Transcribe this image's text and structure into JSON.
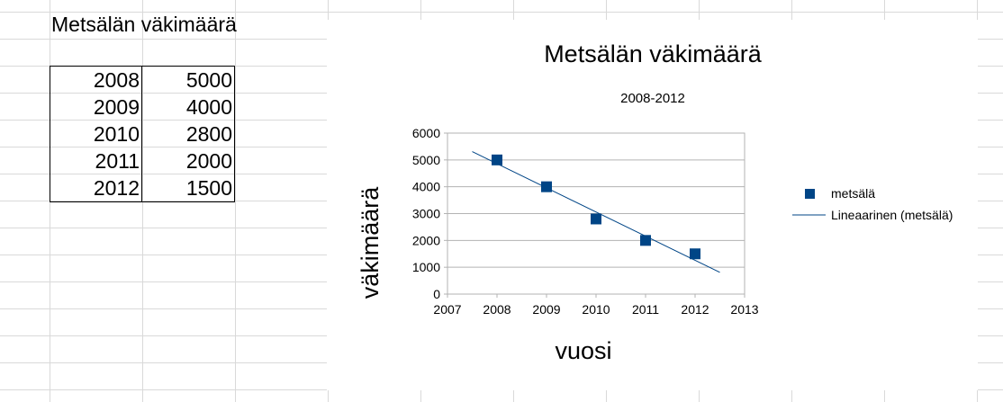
{
  "sheet": {
    "title": "Metsälän väkimäärä",
    "rows": [
      {
        "year": "2008",
        "value": "5000"
      },
      {
        "year": "2009",
        "value": "4000"
      },
      {
        "year": "2010",
        "value": "2800"
      },
      {
        "year": "2011",
        "value": "2000"
      },
      {
        "year": "2012",
        "value": "1500"
      }
    ]
  },
  "chart_data": {
    "type": "scatter",
    "title": "Metsälän väkimäärä",
    "subtitle": "2008-2012",
    "xlabel": "vuosi",
    "ylabel": "väkimäärä",
    "xlim": [
      2007,
      2013
    ],
    "ylim": [
      0,
      6000
    ],
    "x_ticks": [
      "2007",
      "2008",
      "2009",
      "2010",
      "2011",
      "2012",
      "2013"
    ],
    "y_ticks": [
      "0",
      "1000",
      "2000",
      "3000",
      "4000",
      "5000",
      "6000"
    ],
    "grid": "horizontal",
    "legend_position": "right",
    "series": [
      {
        "name": "metsälä",
        "x": [
          2008,
          2009,
          2010,
          2011,
          2012
        ],
        "y": [
          5000,
          4000,
          2800,
          2000,
          1500
        ],
        "color": "#004586",
        "marker": "square"
      }
    ],
    "trendline": {
      "name": "Lineaarinen (metsälä)",
      "type": "linear",
      "x": [
        2007.5,
        2012.5
      ],
      "y": [
        5310,
        810
      ],
      "color": "#004586"
    }
  }
}
